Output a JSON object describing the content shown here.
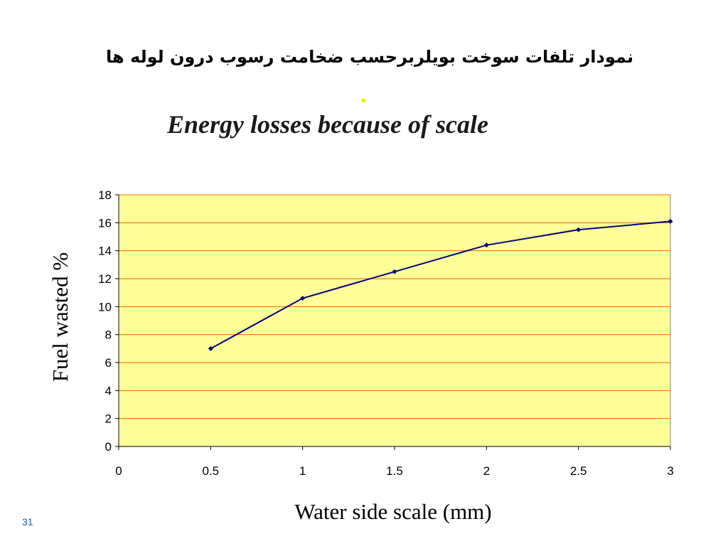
{
  "slide": {
    "title": "نمودار تلفات سوخت بویلربرحسب ضخامت رسوب درون لوله ها",
    "page_number": "31"
  },
  "colors": {
    "plot_background": "#ffff99",
    "grid_line": "#ff6600",
    "series_line": "#000080",
    "accent": "#f2ea00"
  },
  "chart_data": {
    "type": "line",
    "title": "Energy losses because of scale",
    "xlabel": "Water side scale (mm)",
    "ylabel": "Fuel wasted %",
    "xlim": [
      0,
      3
    ],
    "ylim": [
      0,
      18
    ],
    "x_ticks": [
      0,
      0.5,
      1,
      1.5,
      2,
      2.5,
      3
    ],
    "x_tick_labels": [
      "0",
      "0.5",
      "1",
      "1.5",
      "2",
      "2.5",
      "3"
    ],
    "y_ticks": [
      0,
      2,
      4,
      6,
      8,
      10,
      12,
      14,
      16,
      18
    ],
    "y_tick_labels": [
      "0",
      "2",
      "4",
      "6",
      "8",
      "10",
      "12",
      "14",
      "16",
      "18"
    ],
    "grid": true,
    "legend": false,
    "series": [
      {
        "x": [
          0.5,
          1,
          1.5,
          2,
          2.5,
          3
        ],
        "y": [
          7.0,
          10.6,
          12.5,
          14.4,
          15.5,
          16.1
        ],
        "marker": "diamond"
      }
    ]
  }
}
